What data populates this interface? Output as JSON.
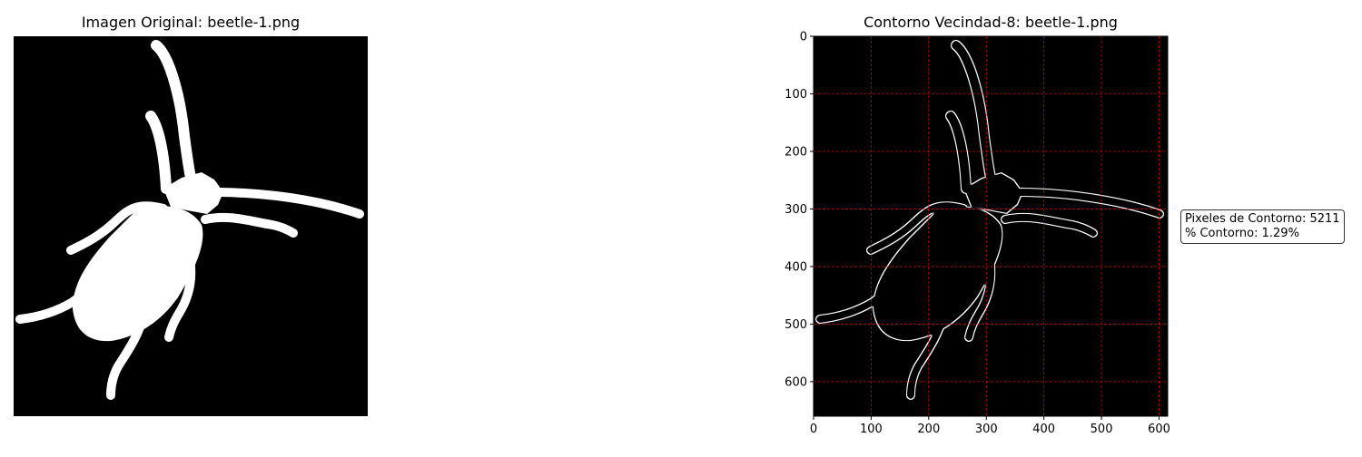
{
  "left_panel": {
    "title": "Imagen Original: beetle-1.png"
  },
  "right_panel": {
    "title": "Contorno Vecindad-8: beetle-1.png",
    "stats": {
      "contour_pixels": "Pixeles de Contorno: 5211",
      "contour_percent": "% Contorno: 1.29%"
    }
  },
  "chart_data": [
    {
      "type": "image",
      "title": "Imagen Original: beetle-1.png",
      "axes_visible": false
    },
    {
      "type": "image",
      "title": "Contorno Vecindad-8: beetle-1.png",
      "xlim": [
        0,
        615
      ],
      "ylim": [
        660,
        0
      ],
      "x_ticks": [
        0,
        100,
        200,
        300,
        400,
        500,
        600
      ],
      "y_ticks": [
        0,
        100,
        200,
        300,
        400,
        500,
        600
      ],
      "grid": true,
      "grid_color": "#ff0000",
      "annotation": [
        "Pixeles de Contorno: 5211",
        "% Contorno: 1.29%"
      ]
    }
  ],
  "colors": {
    "background": "#000000",
    "silhouette": "#ffffff",
    "contour": "#ffffff",
    "grid": "#ff0000"
  }
}
